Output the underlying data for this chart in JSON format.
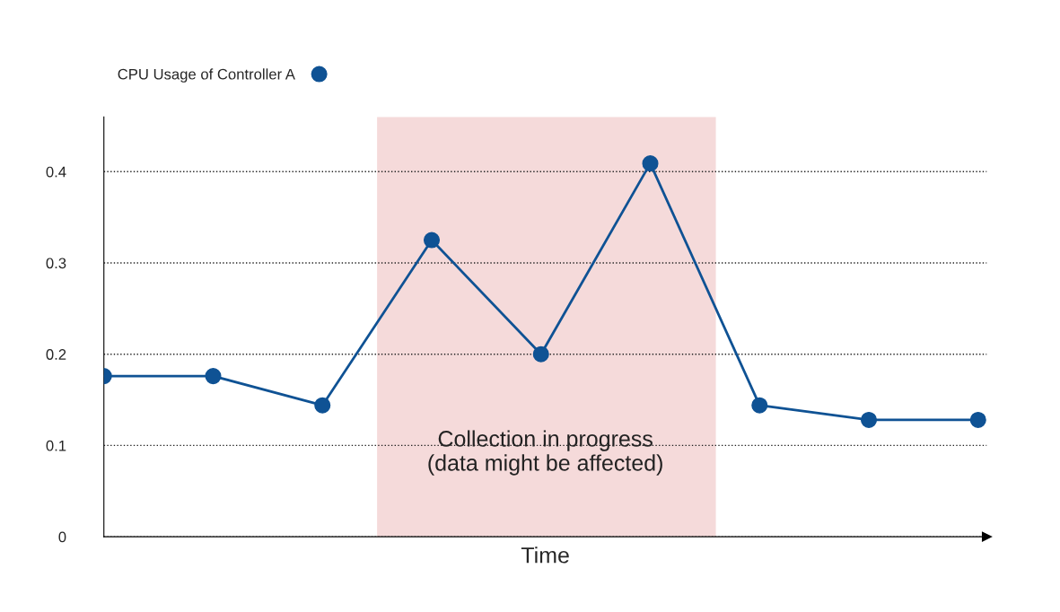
{
  "chart_data": {
    "type": "line",
    "xlabel": "Time",
    "categories": [
      null,
      null,
      null,
      null,
      null,
      null,
      null,
      null,
      null
    ],
    "series": [
      {
        "name": "CPU Usage of Controller A",
        "color": "#0f5294",
        "values": [
          0.176,
          0.176,
          0.144,
          0.325,
          0.2,
          0.409,
          0.144,
          0.128,
          0.128
        ]
      }
    ],
    "marker": "circle",
    "annotations": [
      "Collection in progress\n(data might be affected)"
    ],
    "ylim": [
      0,
      0.46
    ],
    "yticks": [
      0,
      0.1,
      0.2,
      0.3,
      0.4
    ],
    "tick_labels": "y",
    "grid": "y",
    "legend": "top left"
  }
}
